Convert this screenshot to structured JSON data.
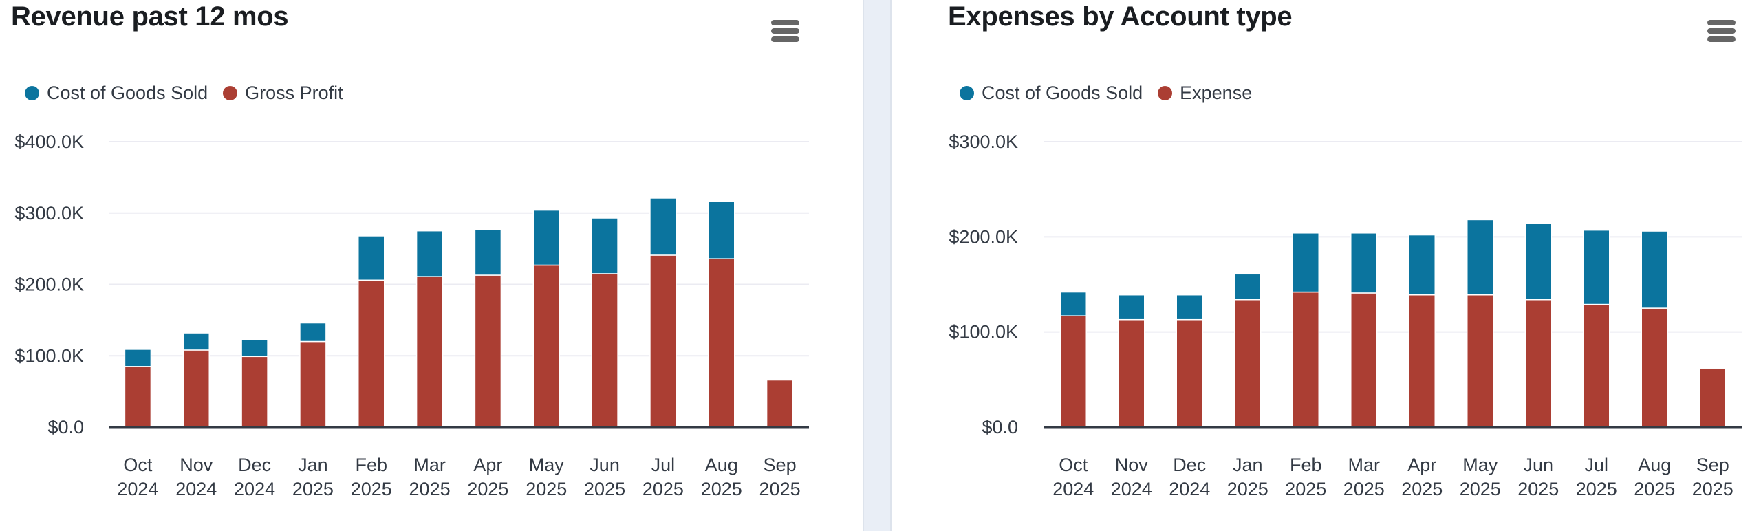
{
  "colors": {
    "cogs": "#0b749e",
    "secondary": "#ab3e33",
    "grid": "#ebebf2",
    "axis": "#333a44",
    "divider": "#e9eef6"
  },
  "menu_icon": "hamburger-menu-icon",
  "chart_data": [
    {
      "type": "bar",
      "stacked": true,
      "title": "Revenue past 12 mos",
      "xlabel": "",
      "ylabel": "",
      "ylim": [
        0,
        400
      ],
      "y_unit": "thousands USD",
      "yticks": [
        0,
        100,
        200,
        300,
        400
      ],
      "ytick_labels": [
        "$0.0",
        "$100.0K",
        "$200.0K",
        "$300.0K",
        "$400.0K"
      ],
      "grid": true,
      "legend_position": "top-left",
      "categories": [
        [
          "Oct",
          "2024"
        ],
        [
          "Nov",
          "2024"
        ],
        [
          "Dec",
          "2024"
        ],
        [
          "Jan",
          "2025"
        ],
        [
          "Feb",
          "2025"
        ],
        [
          "Mar",
          "2025"
        ],
        [
          "Apr",
          "2025"
        ],
        [
          "May",
          "2025"
        ],
        [
          "Jun",
          "2025"
        ],
        [
          "Jul",
          "2025"
        ],
        [
          "Aug",
          "2025"
        ],
        [
          "Sep",
          "2025"
        ]
      ],
      "series": [
        {
          "name": "Gross Profit",
          "color": "#ab3e33",
          "values": [
            85,
            108,
            99,
            120,
            206,
            211,
            213,
            227,
            215,
            241,
            236,
            66
          ]
        },
        {
          "name": "Cost of Goods Sold",
          "color": "#0b749e",
          "values": [
            24,
            24,
            24,
            26,
            62,
            64,
            64,
            77,
            78,
            80,
            80,
            0
          ]
        }
      ],
      "legend": [
        "Cost of Goods Sold",
        "Gross Profit"
      ]
    },
    {
      "type": "bar",
      "stacked": true,
      "title": "Expenses by Account type",
      "xlabel": "",
      "ylabel": "",
      "ylim": [
        0,
        300
      ],
      "y_unit": "thousands USD",
      "yticks": [
        0,
        100,
        200,
        300
      ],
      "ytick_labels": [
        "$0.0",
        "$100.0K",
        "$200.0K",
        "$300.0K"
      ],
      "grid": true,
      "legend_position": "top-left",
      "categories": [
        [
          "Oct",
          "2024"
        ],
        [
          "Nov",
          "2024"
        ],
        [
          "Dec",
          "2024"
        ],
        [
          "Jan",
          "2025"
        ],
        [
          "Feb",
          "2025"
        ],
        [
          "Mar",
          "2025"
        ],
        [
          "Apr",
          "2025"
        ],
        [
          "May",
          "2025"
        ],
        [
          "Jun",
          "2025"
        ],
        [
          "Jul",
          "2025"
        ],
        [
          "Aug",
          "2025"
        ],
        [
          "Sep",
          "2025"
        ]
      ],
      "series": [
        {
          "name": "Expense",
          "color": "#ab3e33",
          "values": [
            117,
            113,
            113,
            134,
            142,
            141,
            139,
            139,
            134,
            129,
            125,
            62
          ]
        },
        {
          "name": "Cost of Goods Sold",
          "color": "#0b749e",
          "values": [
            25,
            26,
            26,
            27,
            62,
            63,
            63,
            79,
            80,
            78,
            81,
            0
          ]
        }
      ],
      "legend": [
        "Cost of Goods Sold",
        "Expense"
      ]
    }
  ]
}
